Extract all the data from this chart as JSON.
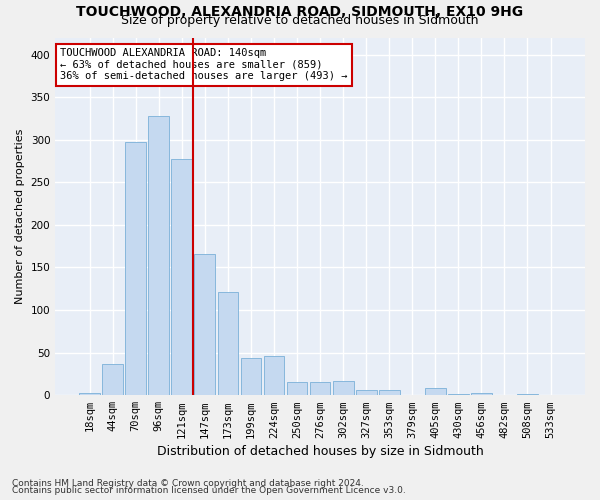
{
  "title": "TOUCHWOOD, ALEXANDRIA ROAD, SIDMOUTH, EX10 9HG",
  "subtitle": "Size of property relative to detached houses in Sidmouth",
  "xlabel": "Distribution of detached houses by size in Sidmouth",
  "ylabel": "Number of detached properties",
  "bar_labels": [
    "18sqm",
    "44sqm",
    "70sqm",
    "96sqm",
    "121sqm",
    "147sqm",
    "173sqm",
    "199sqm",
    "224sqm",
    "250sqm",
    "276sqm",
    "302sqm",
    "327sqm",
    "353sqm",
    "379sqm",
    "405sqm",
    "430sqm",
    "456sqm",
    "482sqm",
    "508sqm",
    "533sqm"
  ],
  "bar_values": [
    2,
    37,
    297,
    328,
    277,
    166,
    121,
    44,
    46,
    15,
    16,
    17,
    6,
    6,
    0,
    8,
    1,
    2,
    0,
    1,
    0
  ],
  "bar_color": "#c5d9f0",
  "bar_edgecolor": "#7ab0d8",
  "background_color": "#e8eef7",
  "grid_color": "#ffffff",
  "vline_x_index": 4.5,
  "vline_color": "#cc0000",
  "annotation_text": "TOUCHWOOD ALEXANDRIA ROAD: 140sqm\n← 63% of detached houses are smaller (859)\n36% of semi-detached houses are larger (493) →",
  "annotation_box_color": "#ffffff",
  "annotation_box_edgecolor": "#cc0000",
  "ylim": [
    0,
    420
  ],
  "yticks": [
    0,
    50,
    100,
    150,
    200,
    250,
    300,
    350,
    400
  ],
  "footer_line1": "Contains HM Land Registry data © Crown copyright and database right 2024.",
  "footer_line2": "Contains public sector information licensed under the Open Government Licence v3.0.",
  "title_fontsize": 10,
  "subtitle_fontsize": 9,
  "xlabel_fontsize": 9,
  "ylabel_fontsize": 8,
  "tick_fontsize": 7.5,
  "footer_fontsize": 6.5,
  "annotation_fontsize": 7.5
}
